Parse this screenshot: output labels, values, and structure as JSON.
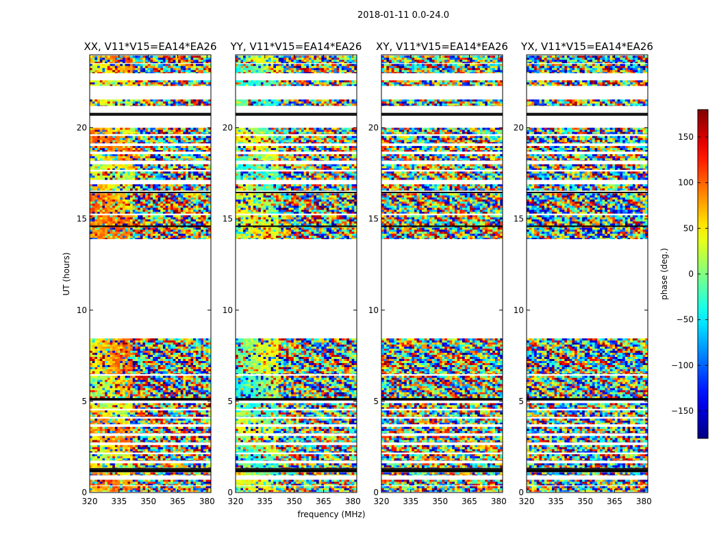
{
  "chart_data": {
    "type": "heatmap",
    "suptitle": "2018-01-11 0.0-24.0",
    "xlabel": "frequency (MHz)",
    "ylabel": "UT (hours)",
    "xlim": [
      320,
      382
    ],
    "ylim": [
      0,
      24
    ],
    "xticks": [
      "320",
      "335",
      "350",
      "365",
      "380"
    ],
    "yticks": [
      "0",
      "5",
      "10",
      "15",
      "20"
    ],
    "panels": [
      {
        "title": "XX, V11*V15=EA14*EA26",
        "base_phase": 60
      },
      {
        "title": "YY, V11*V15=EA14*EA26",
        "base_phase": 5
      },
      {
        "title": "XY, V11*V15=EA14*EA26",
        "base_phase": 20
      },
      {
        "title": "YX, V11*V15=EA14*EA26",
        "base_phase": -30
      }
    ],
    "data_segments_hours": [
      [
        0.05,
        0.35
      ],
      [
        0.4,
        0.7
      ],
      [
        0.95,
        1.1
      ],
      [
        1.35,
        1.6
      ],
      [
        1.75,
        2.1
      ],
      [
        2.2,
        2.6
      ],
      [
        2.75,
        3.1
      ],
      [
        3.25,
        3.6
      ],
      [
        3.75,
        4.05
      ],
      [
        4.15,
        4.5
      ],
      [
        4.6,
        4.9
      ],
      [
        5.15,
        6.4
      ],
      [
        6.5,
        8.45
      ],
      [
        13.9,
        15.2
      ],
      [
        15.3,
        16.4
      ],
      [
        16.55,
        16.9
      ],
      [
        17.15,
        17.6
      ],
      [
        17.7,
        18.0
      ],
      [
        18.2,
        18.55
      ],
      [
        18.7,
        19.0
      ],
      [
        19.15,
        19.55
      ],
      [
        19.65,
        20.0
      ],
      [
        21.2,
        21.55
      ],
      [
        22.3,
        22.6
      ],
      [
        23.0,
        23.5
      ],
      [
        23.55,
        23.95
      ]
    ],
    "flag_lines_hours": [
      1.15,
      1.22,
      1.3,
      5.08,
      5.14,
      14.6,
      16.45,
      20.7,
      20.78
    ],
    "colorbar": {
      "label": "phase (deg.)",
      "range": [
        -180,
        180
      ],
      "ticks": [
        "150",
        "100",
        "50",
        "0",
        "−50",
        "−100",
        "−150"
      ],
      "tick_values": [
        150,
        100,
        50,
        0,
        -50,
        -100,
        -150
      ],
      "colormap": "jet"
    }
  }
}
